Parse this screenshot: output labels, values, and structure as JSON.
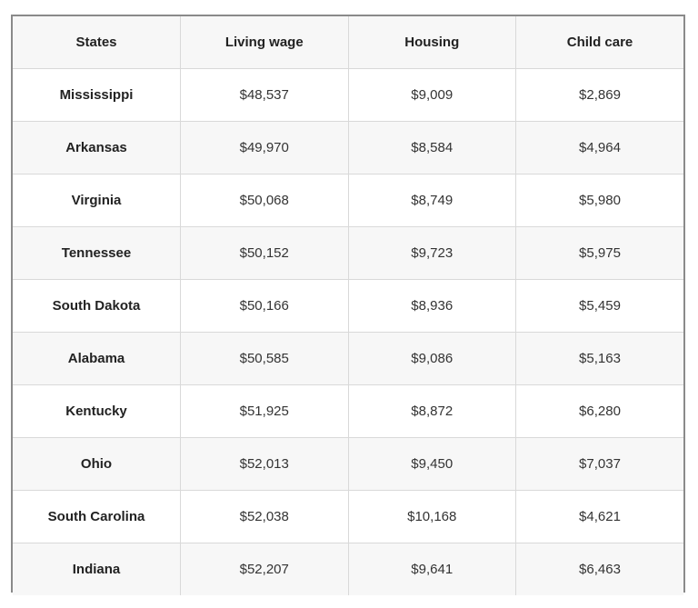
{
  "chart_data": {
    "type": "table",
    "columns": [
      "States",
      "Living wage",
      "Housing",
      "Child care"
    ],
    "rows": [
      [
        "Mississippi",
        "$48,537",
        "$9,009",
        "$2,869"
      ],
      [
        "Arkansas",
        "$49,970",
        "$8,584",
        "$4,964"
      ],
      [
        "Virginia",
        "$50,068",
        "$8,749",
        "$5,980"
      ],
      [
        "Tennessee",
        "$50,152",
        "$9,723",
        "$5,975"
      ],
      [
        "South Dakota",
        "$50,166",
        "$8,936",
        "$5,459"
      ],
      [
        "Alabama",
        "$50,585",
        "$9,086",
        "$5,163"
      ],
      [
        "Kentucky",
        "$51,925",
        "$8,872",
        "$6,280"
      ],
      [
        "Ohio",
        "$52,013",
        "$9,450",
        "$7,037"
      ],
      [
        "South Carolina",
        "$52,038",
        "$10,168",
        "$4,621"
      ],
      [
        "Indiana",
        "$52,207",
        "$9,641",
        "$6,463"
      ]
    ]
  }
}
